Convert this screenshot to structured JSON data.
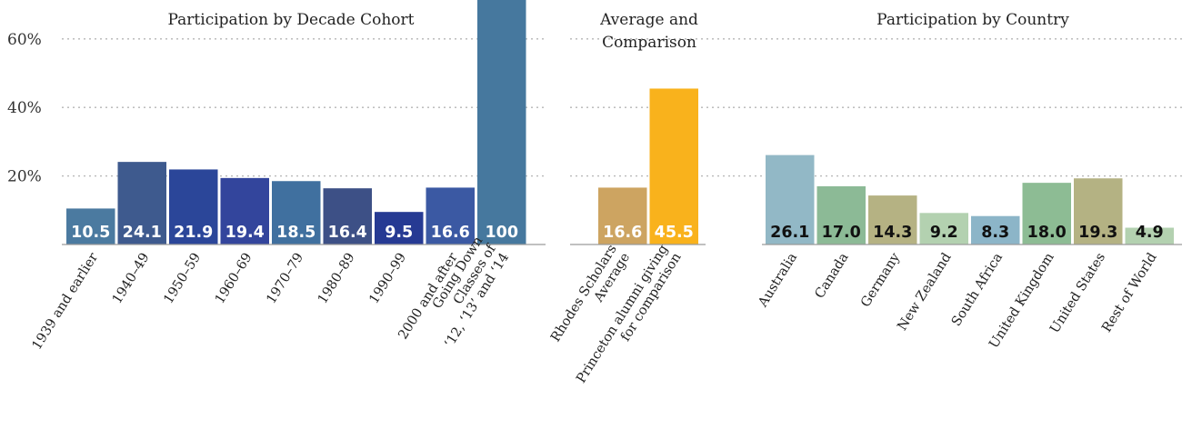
{
  "chart_data": [
    {
      "type": "bar",
      "title": "Participation by Decade Cohort",
      "categories": [
        "1939 and earlier",
        "1940–49",
        "1950–59",
        "1960–69",
        "1970–79",
        "1980–89",
        "1990–99",
        "2000 and after",
        "Going Down\nClasses of\n‘12, ‘13’ and ‘14"
      ],
      "values": [
        10.5,
        24.1,
        21.9,
        19.4,
        18.5,
        16.4,
        9.5,
        16.6,
        100
      ],
      "data_labels": [
        "10.5",
        "24.1",
        "21.9",
        "19.4",
        "18.5",
        "16.4",
        "9.5",
        "16.6",
        "100"
      ],
      "colors": [
        "#4b7aa0",
        "#3e5a8e",
        "#2b4699",
        "#33459c",
        "#40709f",
        "#3d5086",
        "#263a93",
        "#3b59a3",
        "#46789e"
      ],
      "label_color": "#ffffff",
      "unit": "%",
      "ylim": [
        0,
        60
      ],
      "yticks": [
        "20%",
        "40%",
        "60%"
      ],
      "grid": true
    },
    {
      "type": "bar",
      "title": "Average and\nComparison",
      "categories": [
        "Rhodes Scholars\nAverage",
        "Princeton alumni giving\nfor comparison"
      ],
      "values": [
        16.6,
        45.5
      ],
      "data_labels": [
        "16.6",
        "45.5"
      ],
      "colors": [
        "#cda461",
        "#f9b21c"
      ],
      "label_color": "#ffffff",
      "unit": "%",
      "ylim": [
        0,
        60
      ],
      "grid": true
    },
    {
      "type": "bar",
      "title": "Participation by Country",
      "categories": [
        "Australia",
        "Canada",
        "Germany",
        "New Zealand",
        "South Africa",
        "United Kingdom",
        "United States",
        "Rest of World"
      ],
      "values": [
        26.1,
        17.0,
        14.3,
        9.2,
        8.3,
        18.0,
        19.3,
        4.9
      ],
      "data_labels": [
        "26.1",
        "17.0",
        "14.3",
        "9.2",
        "8.3",
        "18.0",
        "19.3",
        "4.9"
      ],
      "colors": [
        "#92b8c6",
        "#8cba96",
        "#b5b283",
        "#b3d1b0",
        "#8cb5c8",
        "#8dbc94",
        "#b4b283",
        "#b3d1b0"
      ],
      "label_color": "#111111",
      "unit": "%",
      "ylim": [
        0,
        60
      ],
      "grid": true
    }
  ]
}
